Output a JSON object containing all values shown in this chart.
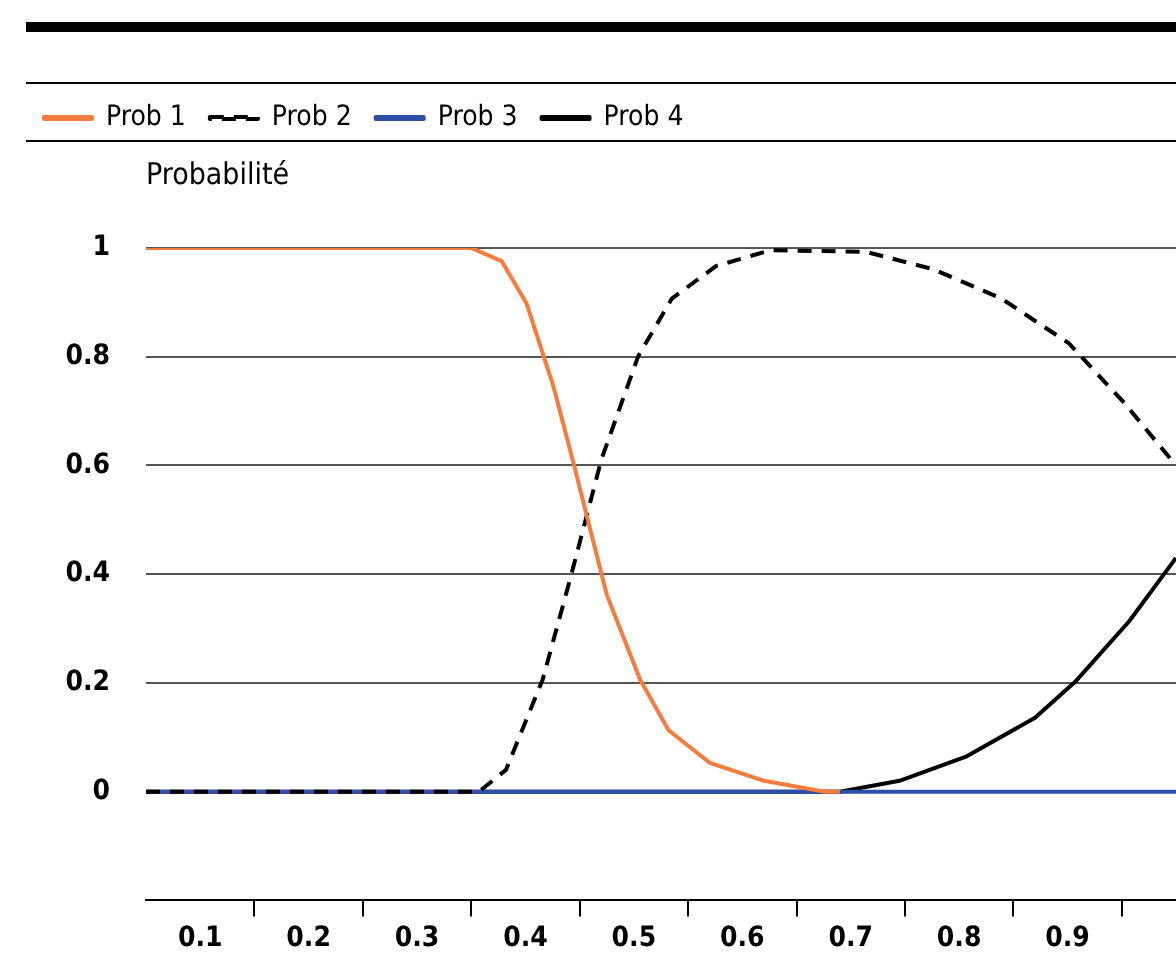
{
  "chart_data": {
    "type": "line",
    "ylabel": "Probabilité",
    "legend": "top left",
    "grid": "y",
    "marker": "none",
    "xlim": [
      0.05,
      1.0
    ],
    "ylim": [
      -0.2,
      1
    ],
    "xticks": [
      {
        "value": 0.1,
        "label": "0.1"
      },
      {
        "value": 0.15,
        "label": null
      },
      {
        "value": 0.2,
        "label": "0.2"
      },
      {
        "value": 0.25,
        "label": null
      },
      {
        "value": 0.3,
        "label": "0.3"
      },
      {
        "value": 0.35,
        "label": null
      },
      {
        "value": 0.4,
        "label": "0.4"
      },
      {
        "value": 0.45,
        "label": null
      },
      {
        "value": 0.5,
        "label": "0.5"
      },
      {
        "value": 0.55,
        "label": null
      },
      {
        "value": 0.6,
        "label": "0.6"
      },
      {
        "value": 0.65,
        "label": null
      },
      {
        "value": 0.7,
        "label": "0.7"
      },
      {
        "value": 0.75,
        "label": null
      },
      {
        "value": 0.8,
        "label": "0.8"
      },
      {
        "value": 0.85,
        "label": null
      },
      {
        "value": 0.9,
        "label": "0.9"
      },
      {
        "value": 0.95,
        "label": null
      }
    ],
    "yticks": [
      0,
      0.2,
      0.4,
      0.6,
      0.8,
      1
    ],
    "series": [
      {
        "name": "Prob 1",
        "color": "#f47c3c",
        "line_style": "solid",
        "x": [
          0.05,
          0.35,
          0.378,
          0.401,
          0.426,
          0.445,
          0.457,
          0.475,
          0.506,
          0.532,
          0.57,
          0.62,
          0.676,
          0.69
        ],
        "values": [
          1,
          1,
          0.976,
          0.898,
          0.744,
          0.599,
          0.504,
          0.362,
          0.205,
          0.113,
          0.053,
          0.02,
          0,
          0
        ]
      },
      {
        "name": "Prob 2",
        "color": "#000000",
        "line_style": "dashed",
        "x": [
          0.05,
          0.357,
          0.382,
          0.416,
          0.442,
          0.47,
          0.504,
          0.535,
          0.576,
          0.626,
          0.714,
          0.776,
          0.839,
          0.901,
          0.951,
          1.0
        ],
        "values": [
          0,
          0,
          0.04,
          0.207,
          0.397,
          0.611,
          0.801,
          0.907,
          0.967,
          0.996,
          0.993,
          0.961,
          0.907,
          0.825,
          0.718,
          0.6
        ]
      },
      {
        "name": "Prob 3",
        "color": "#2e4fa8",
        "line_style": "solid",
        "x": [
          0.05,
          1.0
        ],
        "values": [
          0,
          0
        ]
      },
      {
        "name": "Prob 4",
        "color": "#000000",
        "line_style": "solid",
        "x": [
          0.05,
          0.69,
          0.745,
          0.807,
          0.87,
          0.907,
          0.957,
          1.0
        ],
        "values": [
          0,
          0,
          0.02,
          0.065,
          0.136,
          0.202,
          0.314,
          0.43
        ]
      }
    ]
  }
}
